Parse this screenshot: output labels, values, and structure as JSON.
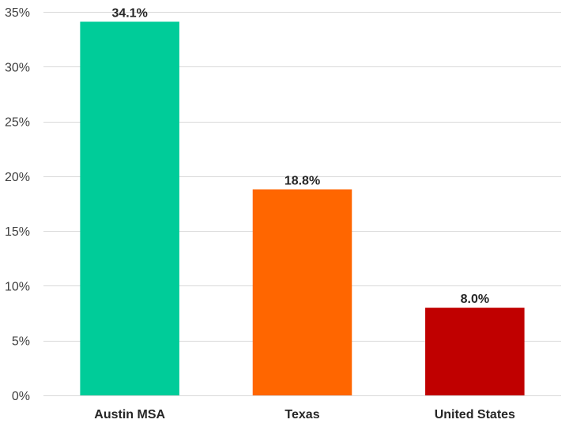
{
  "chart_data": {
    "type": "bar",
    "title": "",
    "xlabel": "",
    "ylabel": "",
    "categories": [
      "Austin MSA",
      "Texas",
      "United States"
    ],
    "values": [
      34.1,
      18.8,
      8.0
    ],
    "data_labels": [
      "34.1%",
      "18.8%",
      "8.0%"
    ],
    "bar_colors": [
      "#00CC99",
      "#FF6600",
      "#C00000"
    ],
    "ylim": [
      0,
      35
    ],
    "yticks": [
      0,
      5,
      10,
      15,
      20,
      25,
      30,
      35
    ],
    "ytick_labels": [
      "0%",
      "5%",
      "10%",
      "15%",
      "20%",
      "25%",
      "30%",
      "35%"
    ],
    "grid": true,
    "legend": "none"
  }
}
